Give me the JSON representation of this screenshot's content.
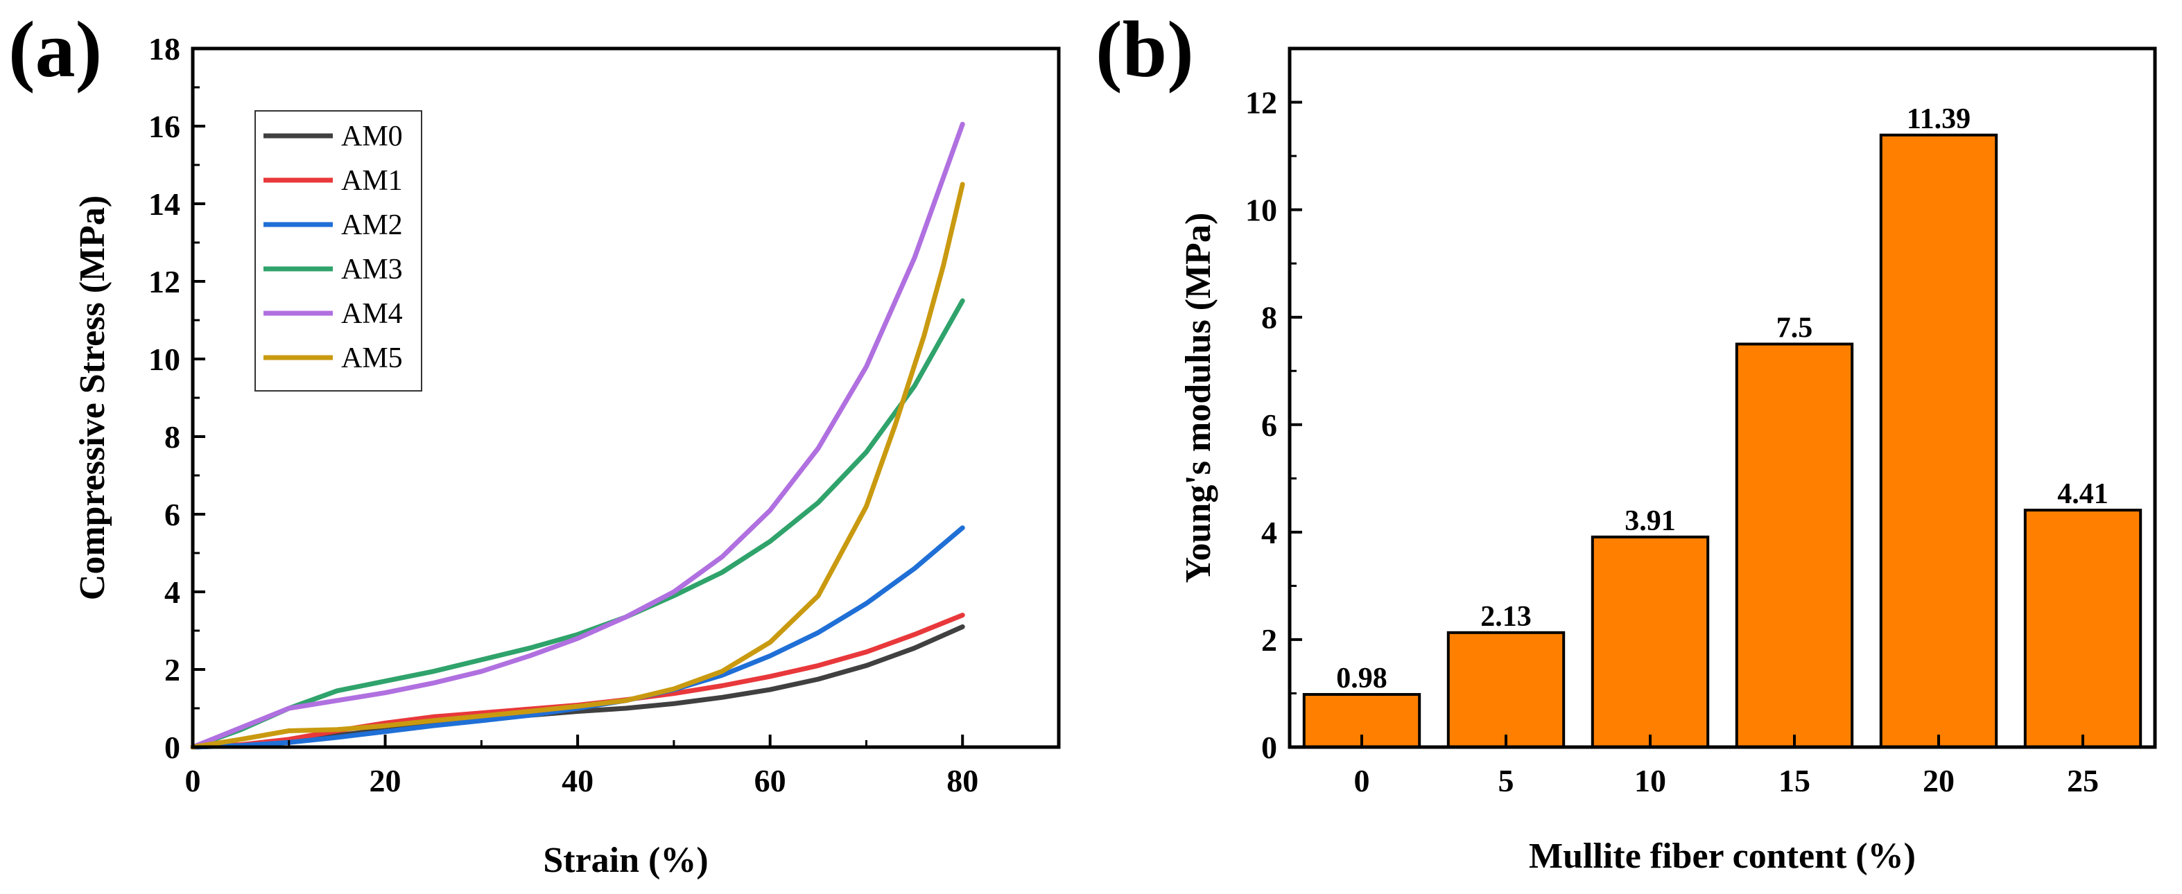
{
  "chart_data": [
    {
      "panel": "(a)",
      "type": "line",
      "xlabel": "Strain (%)",
      "ylabel": "Compressive Stress (MPa)",
      "xlim": [
        0,
        90
      ],
      "ylim": [
        0,
        18
      ],
      "xticks": [
        0,
        20,
        40,
        60,
        80
      ],
      "yticks": [
        0,
        2,
        4,
        6,
        8,
        10,
        12,
        14,
        16,
        18
      ],
      "legend": "top-left",
      "series": [
        {
          "name": "AM0",
          "color": "#404040",
          "x": [
            0,
            5,
            10,
            15,
            20,
            25,
            30,
            35,
            40,
            45,
            50,
            55,
            60,
            65,
            70,
            75,
            80
          ],
          "values": [
            0,
            0.05,
            0.15,
            0.3,
            0.45,
            0.58,
            0.7,
            0.82,
            0.92,
            1.0,
            1.12,
            1.28,
            1.48,
            1.75,
            2.1,
            2.55,
            3.1
          ]
        },
        {
          "name": "AM1",
          "color": "#e8383b",
          "x": [
            0,
            5,
            10,
            15,
            20,
            25,
            30,
            35,
            40,
            45,
            50,
            55,
            60,
            65,
            70,
            75,
            80
          ],
          "values": [
            0,
            0.06,
            0.2,
            0.42,
            0.62,
            0.78,
            0.88,
            0.98,
            1.08,
            1.22,
            1.38,
            1.58,
            1.82,
            2.1,
            2.45,
            2.9,
            3.4
          ]
        },
        {
          "name": "AM2",
          "color": "#1f6fd6",
          "x": [
            0,
            5,
            10,
            15,
            20,
            25,
            30,
            35,
            40,
            45,
            50,
            55,
            60,
            65,
            70,
            75,
            80
          ],
          "values": [
            0,
            0.04,
            0.12,
            0.25,
            0.4,
            0.55,
            0.68,
            0.82,
            1.0,
            1.2,
            1.48,
            1.85,
            2.35,
            2.95,
            3.7,
            4.6,
            5.65
          ]
        },
        {
          "name": "AM3",
          "color": "#2fa36b",
          "x": [
            0,
            5,
            10,
            15,
            20,
            25,
            30,
            35,
            40,
            45,
            50,
            55,
            60,
            65,
            70,
            75,
            80
          ],
          "values": [
            0,
            0.45,
            1.0,
            1.45,
            1.7,
            1.95,
            2.25,
            2.55,
            2.9,
            3.35,
            3.9,
            4.5,
            5.3,
            6.3,
            7.6,
            9.3,
            11.5
          ]
        },
        {
          "name": "AM4",
          "color": "#b070e0",
          "x": [
            0,
            5,
            10,
            15,
            20,
            25,
            30,
            35,
            40,
            45,
            50,
            55,
            60,
            65,
            70,
            75,
            80
          ],
          "values": [
            0,
            0.5,
            1.0,
            1.2,
            1.4,
            1.65,
            1.95,
            2.35,
            2.8,
            3.35,
            4.0,
            4.9,
            6.1,
            7.7,
            9.8,
            12.6,
            16.05
          ]
        },
        {
          "name": "AM5",
          "color": "#c99a10",
          "x": [
            0,
            5,
            10,
            15,
            20,
            25,
            30,
            35,
            40,
            45,
            50,
            55,
            60,
            65,
            70,
            73,
            76,
            78,
            80
          ],
          "values": [
            0,
            0.2,
            0.42,
            0.45,
            0.55,
            0.68,
            0.8,
            0.92,
            1.05,
            1.2,
            1.5,
            1.95,
            2.7,
            3.9,
            6.2,
            8.3,
            10.6,
            12.4,
            14.5
          ]
        }
      ]
    },
    {
      "panel": "(b)",
      "type": "bar",
      "xlabel": "Mullite fiber content (%)",
      "ylabel": "Young's modulus (MPa)",
      "ylim": [
        0,
        13
      ],
      "yticks": [
        0,
        2,
        4,
        6,
        8,
        10,
        12
      ],
      "color": "#ff7f00",
      "categories": [
        "0",
        "5",
        "10",
        "15",
        "20",
        "25"
      ],
      "values": [
        0.98,
        2.13,
        3.91,
        7.5,
        11.39,
        4.41
      ],
      "value_labels": [
        "0.98",
        "2.13",
        "3.91",
        "7.5",
        "11.39",
        "4.41"
      ]
    }
  ]
}
